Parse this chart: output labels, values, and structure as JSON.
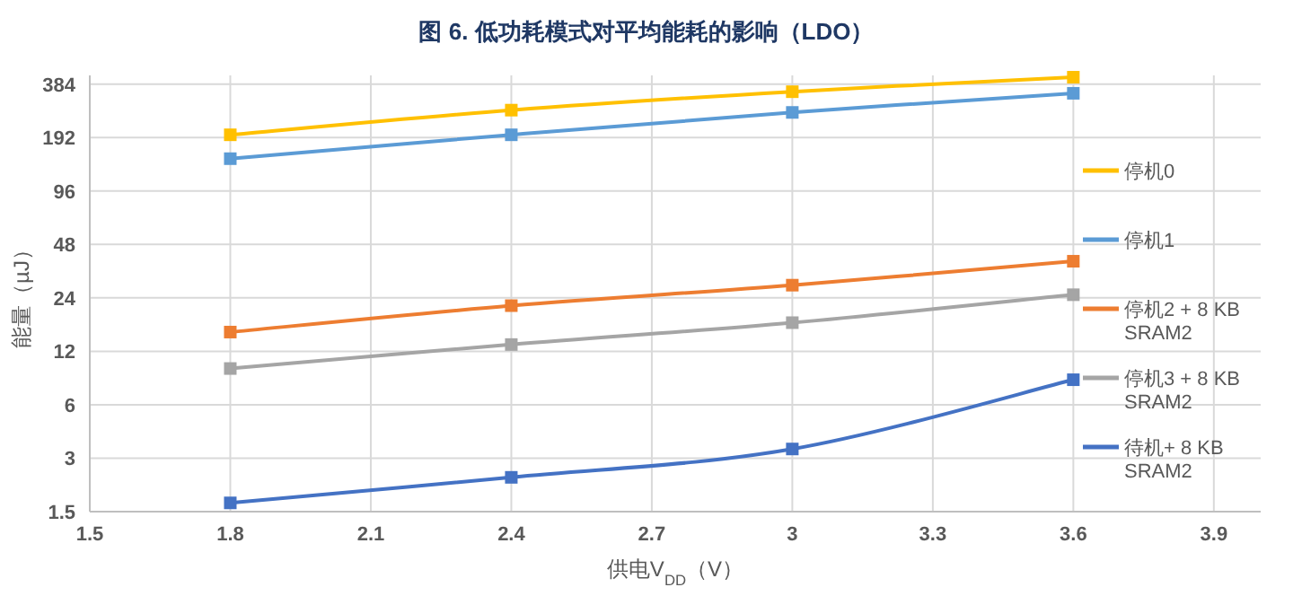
{
  "chart_data": {
    "type": "line",
    "title": "图 6. 低功耗模式对平均能耗的影响（LDO）",
    "xlabel": "供电V$_{DD}$（V）",
    "ylabel": "能量（µJ）",
    "x": [
      1.8,
      2.4,
      3.0,
      3.6
    ],
    "log": "y",
    "grid": true,
    "legend": "right",
    "marker": "square",
    "line_style": "solid",
    "xlim": [
      1.5,
      4.0
    ],
    "xticks": [
      1.5,
      1.8,
      2.1,
      2.4,
      2.7,
      3,
      3.3,
      3.6,
      3.9
    ],
    "ylim": [
      1.5,
      430
    ],
    "yticks": [
      1.5,
      3,
      6,
      12,
      24,
      48,
      96,
      192,
      384
    ],
    "series": [
      {
        "name": "停机0",
        "color": "#ffc000",
        "values": [
          199,
          274,
          348,
          420
        ]
      },
      {
        "name": "停机1",
        "color": "#5b9bd5",
        "values": [
          146,
          199,
          266,
          341
        ]
      },
      {
        "name": "停机2 + 8 KB SRAM2",
        "color": "#ed7d31",
        "values": [
          15.4,
          21.7,
          28.3,
          38.6
        ]
      },
      {
        "name": "停机3 + 8 KB SRAM2",
        "color": "#a5a5a5",
        "values": [
          9.6,
          13.1,
          17.4,
          25
        ]
      },
      {
        "name": "待机+ 8 KB SRAM2",
        "color": "#4472c4",
        "values": [
          1.68,
          2.34,
          3.38,
          8.3
        ]
      }
    ]
  }
}
